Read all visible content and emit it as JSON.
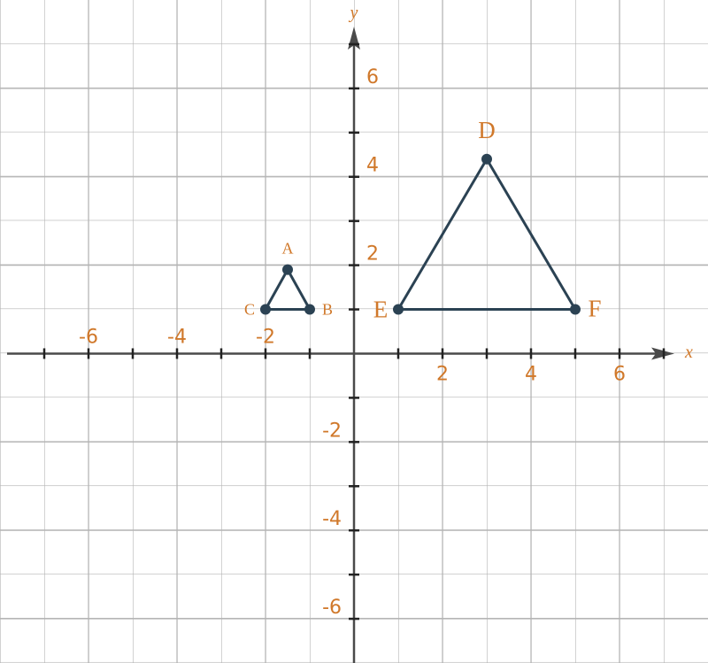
{
  "chart_data": {
    "type": "scatter",
    "x_label": "x",
    "y_label": "y",
    "xlim": [
      -8,
      8
    ],
    "ylim": [
      -7,
      8
    ],
    "xticks": [
      -6,
      -4,
      -2,
      2,
      4,
      6
    ],
    "yticks": [
      -6,
      -4,
      -2,
      2,
      4,
      6
    ],
    "grid": true,
    "series": [
      {
        "labels": [
          "A",
          "B",
          "C"
        ],
        "x": [
          -1.5,
          -1,
          -2
        ],
        "y": [
          1.9,
          1,
          1
        ],
        "color": "#2b4253"
      },
      {
        "labels": [
          "D",
          "E",
          "F"
        ],
        "x": [
          3,
          1,
          5
        ],
        "y": [
          4.4,
          1,
          1
        ],
        "color": "#2b4253"
      }
    ]
  }
}
